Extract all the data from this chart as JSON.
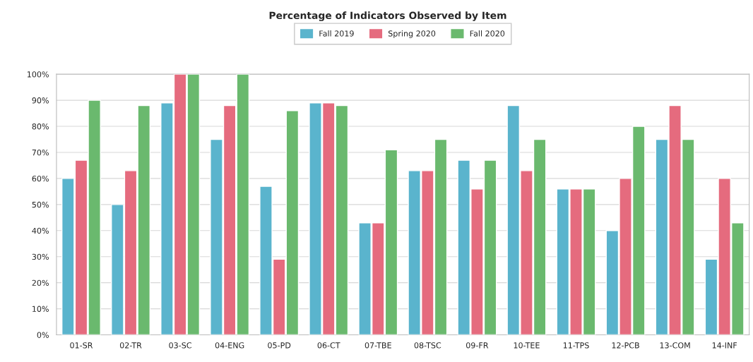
{
  "chart_data": {
    "type": "bar",
    "title": "Percentage of Indicators Observed by Item",
    "categories": [
      "01-SR",
      "02-TR",
      "03-SC",
      "04-ENG",
      "05-PD",
      "06-CT",
      "07-TBE",
      "08-TSC",
      "09-FR",
      "10-TEE",
      "11-TPS",
      "12-PCB",
      "13-COM",
      "14-INF"
    ],
    "series": [
      {
        "name": "Fall 2019",
        "color": "#5ab4cd",
        "values": [
          60,
          50,
          89,
          75,
          57,
          89,
          43,
          63,
          67,
          88,
          56,
          40,
          75,
          29
        ]
      },
      {
        "name": "Spring 2020",
        "color": "#e56b7e",
        "values": [
          67,
          63,
          100,
          88,
          29,
          89,
          43,
          63,
          56,
          63,
          56,
          60,
          88,
          60
        ]
      },
      {
        "name": "Fall 2020",
        "color": "#6ab96e",
        "values": [
          90,
          88,
          100,
          100,
          86,
          88,
          71,
          75,
          67,
          75,
          56,
          80,
          75,
          43
        ]
      }
    ],
    "ylim": [
      0,
      100
    ],
    "yticks": [
      {
        "value": 0,
        "label": "0%"
      },
      {
        "value": 10,
        "label": "10%"
      },
      {
        "value": 20,
        "label": "20%"
      },
      {
        "value": 30,
        "label": "30%"
      },
      {
        "value": 40,
        "label": "40%"
      },
      {
        "value": 50,
        "label": "50%"
      },
      {
        "value": 60,
        "label": "60%"
      },
      {
        "value": 70,
        "label": "70%"
      },
      {
        "value": 80,
        "label": "80%"
      },
      {
        "value": 90,
        "label": "90%"
      },
      {
        "value": 100,
        "label": "100%"
      }
    ],
    "grid": "y",
    "legend": "top"
  }
}
